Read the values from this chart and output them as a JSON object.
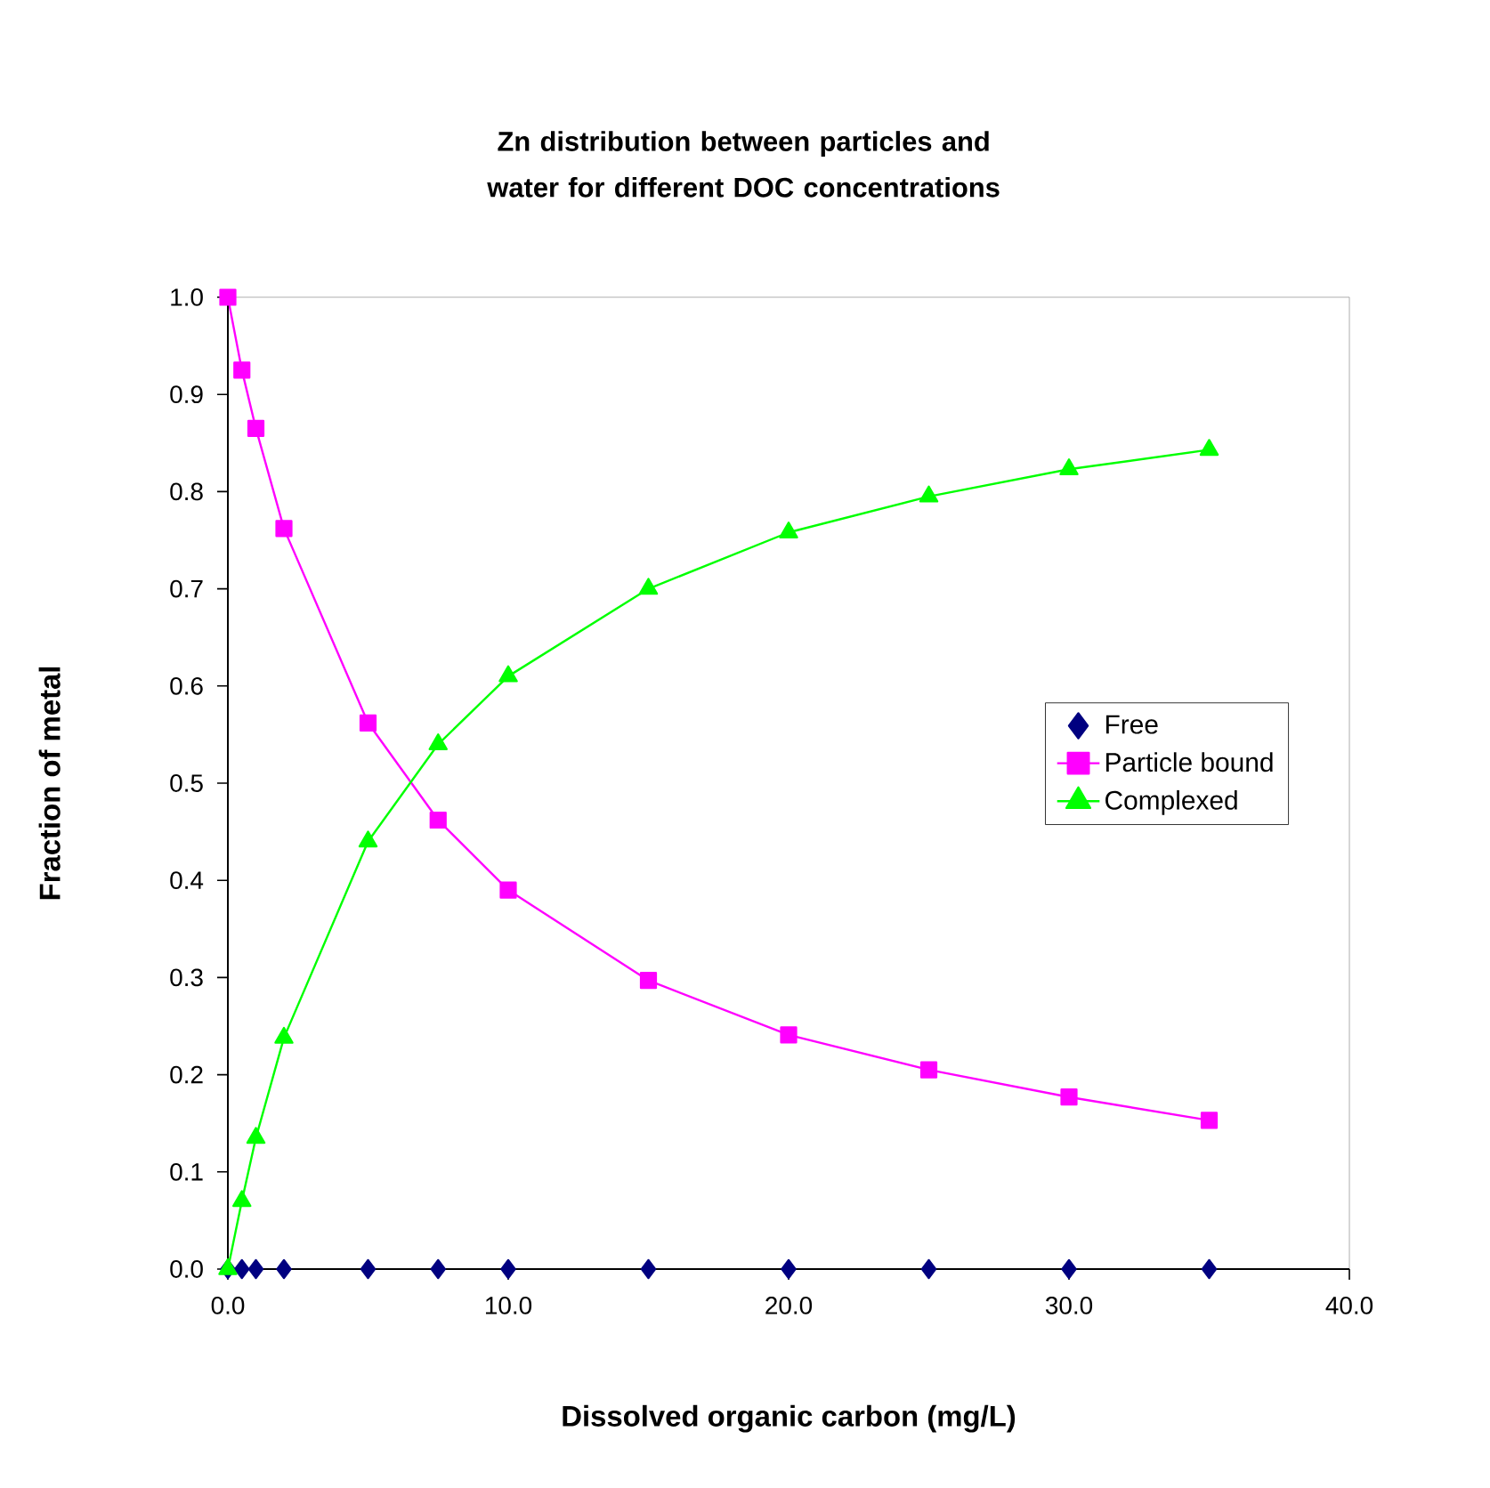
{
  "chart_data": {
    "type": "line",
    "title": "Zn distribution between particles and water for different DOC concentrations",
    "xlabel": "Dissolved organic carbon (mg/L)",
    "ylabel": "Fraction of metal",
    "x": [
      0,
      0.5,
      1,
      2,
      5,
      7.5,
      10,
      15,
      20,
      25,
      30,
      35
    ],
    "series": [
      {
        "name": "Free",
        "type": "scatter",
        "marker": "diamond",
        "color": "#000080",
        "values": [
          0,
          0,
          0,
          0,
          0,
          0,
          0,
          0,
          0,
          0,
          0,
          0
        ]
      },
      {
        "name": "Particle bound",
        "marker": "square",
        "color": "#ff00ff",
        "values": [
          1.0,
          0.925,
          0.865,
          0.762,
          0.562,
          0.462,
          0.39,
          0.297,
          0.241,
          0.205,
          0.177,
          0.153
        ]
      },
      {
        "name": "Complexed",
        "marker": "triangle",
        "color": "#00ff00",
        "values": [
          0,
          0.07,
          0.135,
          0.238,
          0.44,
          0.54,
          0.61,
          0.7,
          0.758,
          0.795,
          0.823,
          0.843
        ]
      }
    ],
    "xlim": [
      0,
      40
    ],
    "xticks": [
      {
        "value": 0,
        "label": "0.0"
      },
      {
        "value": 10,
        "label": "10.0"
      },
      {
        "value": 20,
        "label": "20.0"
      },
      {
        "value": 30,
        "label": "30.0"
      },
      {
        "value": 40,
        "label": "40.0"
      }
    ],
    "ylim": [
      0,
      1
    ],
    "yticks": [
      {
        "value": 0,
        "label": "0.0"
      },
      {
        "value": 0.1,
        "label": "0.1"
      },
      {
        "value": 0.2,
        "label": "0.2"
      },
      {
        "value": 0.3,
        "label": "0.3"
      },
      {
        "value": 0.4,
        "label": "0.4"
      },
      {
        "value": 0.5,
        "label": "0.5"
      },
      {
        "value": 0.6,
        "label": "0.6"
      },
      {
        "value": 0.7,
        "label": "0.7"
      },
      {
        "value": 0.8,
        "label": "0.8"
      },
      {
        "value": 0.9,
        "label": "0.9"
      },
      {
        "value": 1.0,
        "label": "1.0"
      }
    ],
    "grid": false,
    "legend": "right"
  }
}
